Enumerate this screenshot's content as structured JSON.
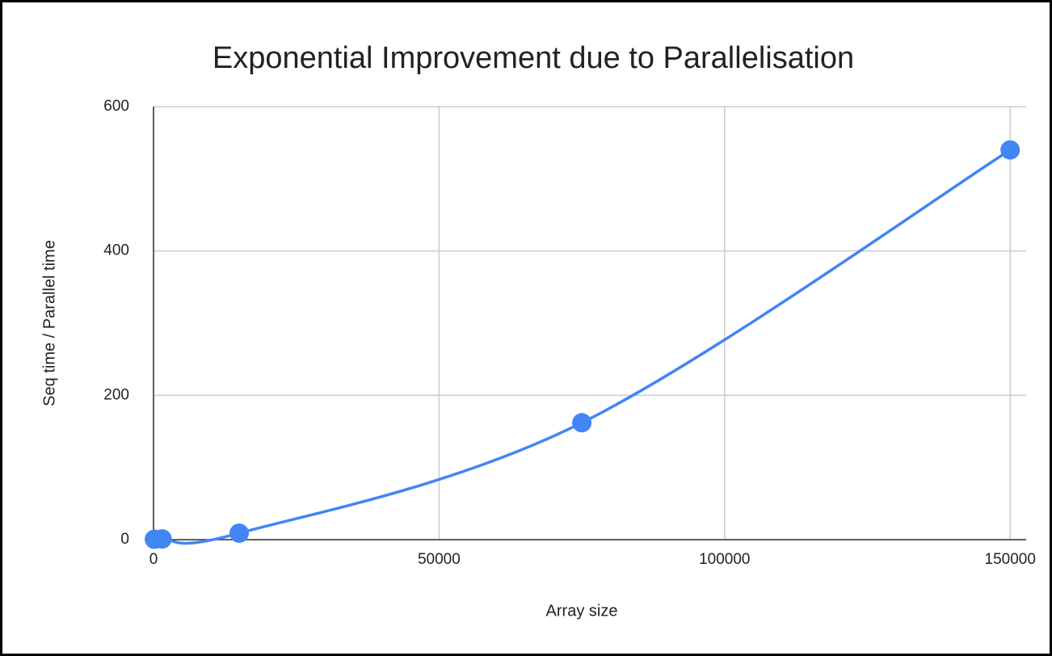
{
  "chart_data": {
    "type": "line",
    "title": "Exponential Improvement due to Parallelisation",
    "x_label": "Array size",
    "y_label": "Seq time / Parallel time",
    "x": [
      150,
      1500,
      15000,
      75000,
      150000
    ],
    "series": [
      {
        "name": "Seq time / Parallel time",
        "color": "#4285f4",
        "values": [
          0.5,
          1,
          9,
          162,
          540
        ]
      }
    ],
    "xlim": [
      0,
      152800
    ],
    "xticks": [
      0,
      50000,
      100000,
      150000
    ],
    "ylim": [
      0,
      600
    ],
    "yticks": [
      0,
      200,
      400,
      600
    ],
    "grid": true
  }
}
